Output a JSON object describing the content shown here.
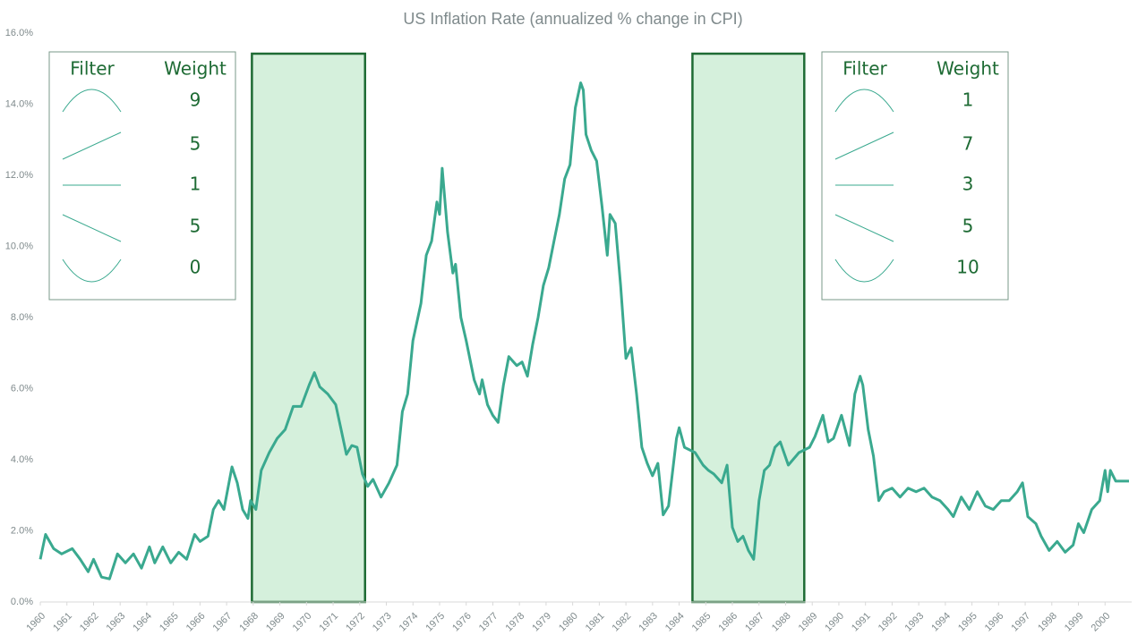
{
  "chart_data": {
    "type": "line",
    "title": "US Inflation Rate (annualized % change in CPI)",
    "x": [
      1960.0,
      1960.2,
      1960.5,
      1960.8,
      1961.2,
      1961.5,
      1961.8,
      1962.0,
      1962.3,
      1962.6,
      1962.9,
      1963.2,
      1963.5,
      1963.8,
      1964.1,
      1964.3,
      1964.6,
      1964.9,
      1965.2,
      1965.5,
      1965.8,
      1966.0,
      1966.3,
      1966.5,
      1966.7,
      1966.9,
      1967.2,
      1967.4,
      1967.6,
      1967.8,
      1967.9,
      1968.1,
      1968.3,
      1968.6,
      1968.9,
      1969.2,
      1969.5,
      1969.8,
      1970.1,
      1970.3,
      1970.5,
      1970.8,
      1971.1,
      1971.3,
      1971.5,
      1971.7,
      1971.9,
      1972.1,
      1972.3,
      1972.5,
      1972.8,
      1973.1,
      1973.4,
      1973.6,
      1973.8,
      1974.0,
      1974.3,
      1974.5,
      1974.7,
      1974.9,
      1975.0,
      1975.1,
      1975.3,
      1975.5,
      1975.6,
      1975.8,
      1976.0,
      1976.3,
      1976.5,
      1976.6,
      1976.8,
      1977.0,
      1977.2,
      1977.4,
      1977.6,
      1977.9,
      1978.1,
      1978.3,
      1978.5,
      1978.7,
      1978.9,
      1979.1,
      1979.3,
      1979.5,
      1979.7,
      1979.9,
      1980.1,
      1980.3,
      1980.4,
      1980.5,
      1980.7,
      1980.9,
      1981.1,
      1981.3,
      1981.4,
      1981.6,
      1981.8,
      1982.0,
      1982.2,
      1982.4,
      1982.6,
      1982.8,
      1983.0,
      1983.2,
      1983.4,
      1983.6,
      1983.9,
      1984.0,
      1984.2,
      1984.6,
      1984.9,
      1985.1,
      1985.3,
      1985.6,
      1985.8,
      1986.0,
      1986.2,
      1986.4,
      1986.6,
      1986.8,
      1987.0,
      1987.2,
      1987.4,
      1987.6,
      1987.8,
      1988.1,
      1988.5,
      1988.9,
      1989.1,
      1989.4,
      1989.6,
      1989.8,
      1990.1,
      1990.4,
      1990.6,
      1990.8,
      1990.9,
      1991.1,
      1991.3,
      1991.5,
      1991.7,
      1992.0,
      1992.3,
      1992.6,
      1992.9,
      1993.2,
      1993.5,
      1993.8,
      1994.1,
      1994.3,
      1994.6,
      1994.9,
      1995.2,
      1995.5,
      1995.8,
      1996.1,
      1996.4,
      1996.7,
      1996.9,
      1997.1,
      1997.4,
      1997.6,
      1997.9,
      1998.2,
      1998.5,
      1998.8,
      1999.0,
      1999.2,
      1999.5,
      1999.8,
      2000.0,
      2000.1,
      2000.2,
      2000.4,
      2000.9
    ],
    "values": [
      1.2,
      1.9,
      1.5,
      1.35,
      1.5,
      1.2,
      0.85,
      1.2,
      0.7,
      0.65,
      1.35,
      1.1,
      1.35,
      0.95,
      1.55,
      1.1,
      1.55,
      1.1,
      1.4,
      1.2,
      1.9,
      1.7,
      1.85,
      2.6,
      2.85,
      2.6,
      3.8,
      3.35,
      2.6,
      2.35,
      2.85,
      2.6,
      3.7,
      4.2,
      4.6,
      4.85,
      5.5,
      5.5,
      6.1,
      6.45,
      6.05,
      5.85,
      5.55,
      4.85,
      4.15,
      4.4,
      4.35,
      3.6,
      3.25,
      3.45,
      2.95,
      3.35,
      3.85,
      5.35,
      5.85,
      7.35,
      8.4,
      9.75,
      10.15,
      11.25,
      10.9,
      12.2,
      10.4,
      9.25,
      9.5,
      8.0,
      7.35,
      6.25,
      5.85,
      6.25,
      5.55,
      5.25,
      5.05,
      6.1,
      6.9,
      6.65,
      6.75,
      6.35,
      7.25,
      8.0,
      8.9,
      9.4,
      10.15,
      10.9,
      11.9,
      12.3,
      13.9,
      14.6,
      14.4,
      13.15,
      12.7,
      12.4,
      11.15,
      9.75,
      10.9,
      10.65,
      8.9,
      6.85,
      7.15,
      5.85,
      4.35,
      3.9,
      3.55,
      3.9,
      2.45,
      2.7,
      4.6,
      4.9,
      4.35,
      4.2,
      3.85,
      3.7,
      3.6,
      3.35,
      3.85,
      2.1,
      1.7,
      1.85,
      1.45,
      1.2,
      2.85,
      3.7,
      3.85,
      4.35,
      4.5,
      3.85,
      4.2,
      4.35,
      4.65,
      5.25,
      4.5,
      4.6,
      5.25,
      4.4,
      5.85,
      6.35,
      6.1,
      4.85,
      4.1,
      2.85,
      3.1,
      3.2,
      2.95,
      3.2,
      3.1,
      3.2,
      2.95,
      2.85,
      2.6,
      2.4,
      2.95,
      2.6,
      3.1,
      2.7,
      2.6,
      2.85,
      2.85,
      3.1,
      3.35,
      2.4,
      2.2,
      1.85,
      1.45,
      1.7,
      1.4,
      1.6,
      2.2,
      1.95,
      2.6,
      2.85,
      3.7,
      3.1,
      3.7,
      3.4,
      3.4
    ],
    "color": "#3aa98f",
    "xlim": [
      1960,
      2001
    ],
    "xticks": [
      1960,
      1961,
      1962,
      1963,
      1964,
      1965,
      1966,
      1967,
      1968,
      1969,
      1970,
      1971,
      1972,
      1973,
      1974,
      1975,
      1976,
      1977,
      1978,
      1979,
      1980,
      1981,
      1982,
      1983,
      1984,
      1985,
      1986,
      1987,
      1988,
      1989,
      1990,
      1991,
      1992,
      1993,
      1994,
      1995,
      1996,
      1997,
      1998,
      1999,
      2000
    ],
    "ylim": [
      0,
      16
    ],
    "yticks": [
      {
        "value": 0,
        "label": "0.0%"
      },
      {
        "value": 2,
        "label": "2.0%"
      },
      {
        "value": 4,
        "label": "4.0%"
      },
      {
        "value": 6,
        "label": "6.0%"
      },
      {
        "value": 8,
        "label": "8.0%"
      },
      {
        "value": 10,
        "label": "10.0%"
      },
      {
        "value": 12,
        "label": "12.0%"
      },
      {
        "value": 14,
        "label": "14.0%"
      },
      {
        "value": 16,
        "label": "16.0%"
      }
    ],
    "grid": false,
    "highlight_ranges": [
      [
        1967.95,
        1972.2
      ],
      [
        1984.5,
        1988.7
      ]
    ],
    "highlight_color": "#d5f0dc",
    "filter_panels": [
      {
        "headers": [
          "Filter",
          "Weight"
        ],
        "weights": [
          9,
          5,
          1,
          5,
          0
        ]
      },
      {
        "headers": [
          "Filter",
          "Weight"
        ],
        "weights": [
          1,
          7,
          3,
          5,
          10
        ]
      }
    ]
  }
}
